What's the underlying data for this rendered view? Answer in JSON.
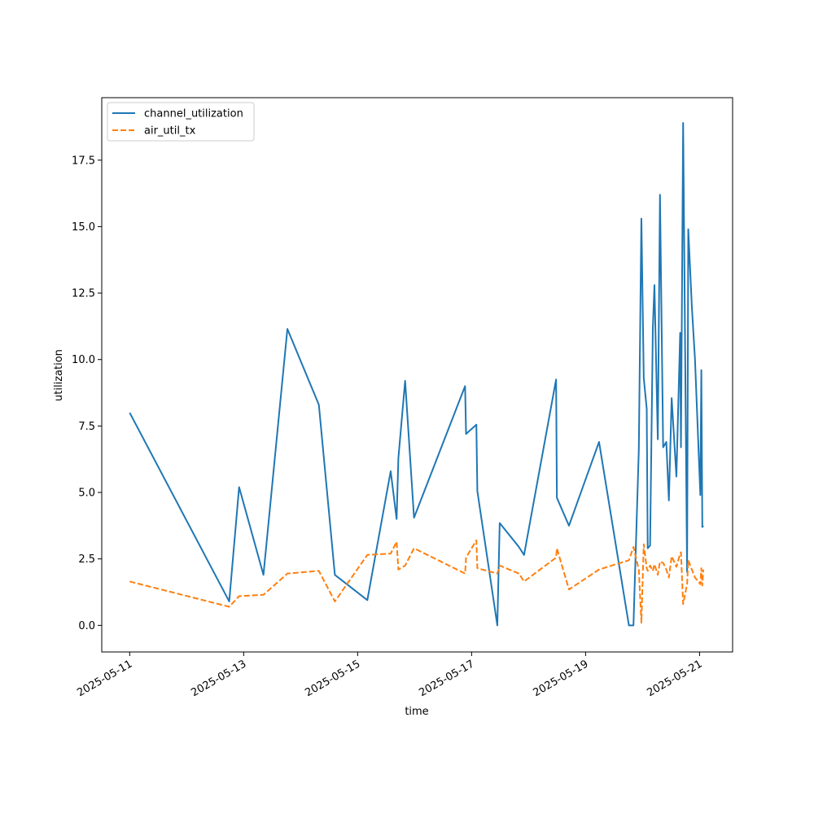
{
  "chart_data": {
    "type": "line",
    "title": "",
    "xlabel": "time",
    "ylabel": "utilization",
    "x_type": "datetime",
    "xlim": [
      "2025-05-10 12:14",
      "2025-05-21 13:55"
    ],
    "ylim": [
      -1.0,
      19.85
    ],
    "x_ticks": [
      "2025-05-11",
      "2025-05-13",
      "2025-05-15",
      "2025-05-17",
      "2025-05-19",
      "2025-05-21"
    ],
    "y_ticks": [
      0.0,
      2.5,
      5.0,
      7.5,
      10.0,
      12.5,
      15.0,
      17.5
    ],
    "y_tick_labels": [
      "0.0",
      "2.5",
      "5.0",
      "7.5",
      "10.0",
      "12.5",
      "15.0",
      "17.5"
    ],
    "grid": false,
    "legend_position": "top-left",
    "series": [
      {
        "name": "channel_utilization",
        "color": "#1f77b4",
        "style": "solid",
        "x": [
          "2025-05-11 00:00",
          "2025-05-12 17:55",
          "2025-05-12 22:05",
          "2025-05-13 08:20",
          "2025-05-13 18:25",
          "2025-05-14 07:40",
          "2025-05-14 14:25",
          "2025-05-15 04:05",
          "2025-05-15 13:55",
          "2025-05-15 16:25",
          "2025-05-15 17:10",
          "2025-05-15 20:00",
          "2025-05-15 23:45",
          "2025-05-16 21:15",
          "2025-05-16 21:40",
          "2025-05-17 02:00",
          "2025-05-17 02:25",
          "2025-05-17 10:50",
          "2025-05-17 11:50",
          "2025-05-17 19:55",
          "2025-05-17 22:05",
          "2025-05-18 11:35",
          "2025-05-18 11:55",
          "2025-05-18 17:00",
          "2025-05-19 05:40",
          "2025-05-19 18:15",
          "2025-05-19 20:10",
          "2025-05-19 22:25",
          "2025-05-19 23:30",
          "2025-05-20 00:30",
          "2025-05-20 01:45",
          "2025-05-20 02:10",
          "2025-05-20 03:10",
          "2025-05-20 04:20",
          "2025-05-20 05:00",
          "2025-05-20 06:25",
          "2025-05-20 07:20",
          "2025-05-20 08:40",
          "2025-05-20 10:00",
          "2025-05-20 11:05",
          "2025-05-20 12:15",
          "2025-05-20 14:15",
          "2025-05-20 15:50",
          "2025-05-20 16:10",
          "2025-05-20 17:05",
          "2025-05-20 18:45",
          "2025-05-20 19:15",
          "2025-05-20 20:45",
          "2025-05-20 22:05",
          "2025-05-21 00:20",
          "2025-05-21 00:45",
          "2025-05-21 01:10",
          "2025-05-21 01:35"
        ],
        "y": [
          8.0,
          0.9,
          5.2,
          1.9,
          11.15,
          8.3,
          1.9,
          0.95,
          5.8,
          4.0,
          6.3,
          9.2,
          4.05,
          9.0,
          7.2,
          7.55,
          5.05,
          0.0,
          3.85,
          2.95,
          2.65,
          9.25,
          4.8,
          3.75,
          6.9,
          0.0,
          0.0,
          6.6,
          15.3,
          9.3,
          8.15,
          2.9,
          3.0,
          11.2,
          12.8,
          7.0,
          16.2,
          6.7,
          6.9,
          4.7,
          8.55,
          5.6,
          11.0,
          6.7,
          18.9,
          2.0,
          14.9,
          12.0,
          10.0,
          4.9,
          9.6,
          3.7,
          3.75
        ]
      },
      {
        "name": "air_util_tx",
        "color": "#ff7f0e",
        "style": "dashed",
        "x": [
          "2025-05-11 00:00",
          "2025-05-12 17:55",
          "2025-05-12 22:05",
          "2025-05-13 08:20",
          "2025-05-13 18:25",
          "2025-05-14 07:40",
          "2025-05-14 14:25",
          "2025-05-15 04:05",
          "2025-05-15 13:55",
          "2025-05-15 16:25",
          "2025-05-15 17:10",
          "2025-05-15 20:00",
          "2025-05-15 23:45",
          "2025-05-16 21:15",
          "2025-05-16 21:40",
          "2025-05-17 02:00",
          "2025-05-17 02:25",
          "2025-05-17 10:50",
          "2025-05-17 11:50",
          "2025-05-17 19:55",
          "2025-05-17 22:05",
          "2025-05-18 11:35",
          "2025-05-18 11:55",
          "2025-05-18 17:00",
          "2025-05-19 05:40",
          "2025-05-19 18:15",
          "2025-05-19 20:10",
          "2025-05-19 22:25",
          "2025-05-19 23:30",
          "2025-05-20 00:30",
          "2025-05-20 01:45",
          "2025-05-20 02:10",
          "2025-05-20 03:10",
          "2025-05-20 04:20",
          "2025-05-20 05:00",
          "2025-05-20 06:25",
          "2025-05-20 07:20",
          "2025-05-20 08:40",
          "2025-05-20 10:00",
          "2025-05-20 11:05",
          "2025-05-20 12:15",
          "2025-05-20 14:15",
          "2025-05-20 15:50",
          "2025-05-20 16:10",
          "2025-05-20 17:05",
          "2025-05-20 18:45",
          "2025-05-20 19:15",
          "2025-05-20 20:45",
          "2025-05-20 22:05",
          "2025-05-21 00:20",
          "2025-05-21 00:45",
          "2025-05-21 01:10",
          "2025-05-21 01:35"
        ],
        "y": [
          1.65,
          0.7,
          1.1,
          1.15,
          1.95,
          2.05,
          0.9,
          2.65,
          2.7,
          3.15,
          2.1,
          2.25,
          2.9,
          1.95,
          2.55,
          3.2,
          2.15,
          1.95,
          2.25,
          1.95,
          1.65,
          2.55,
          2.9,
          1.35,
          2.1,
          2.45,
          2.95,
          2.1,
          0.1,
          3.05,
          2.15,
          2.05,
          2.25,
          2.05,
          2.3,
          1.9,
          2.4,
          2.35,
          2.1,
          1.8,
          2.6,
          2.2,
          2.7,
          2.75,
          0.8,
          1.55,
          2.45,
          2.1,
          1.8,
          1.55,
          2.15,
          1.5,
          2.1
        ]
      }
    ]
  }
}
